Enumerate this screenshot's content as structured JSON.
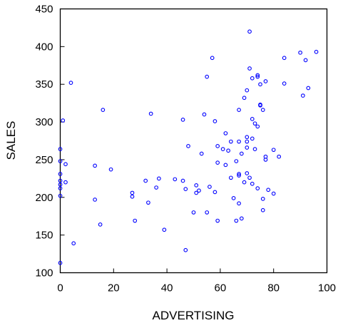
{
  "chart_data": {
    "type": "scatter",
    "title": "",
    "xlabel": "ADVERTISING",
    "ylabel": "SALES",
    "xlim": [
      0,
      100
    ],
    "ylim": [
      100,
      450
    ],
    "xticks": [
      0,
      20,
      40,
      60,
      80,
      100
    ],
    "yticks": [
      100,
      150,
      200,
      250,
      300,
      350,
      400,
      450
    ],
    "grid": false,
    "legend": "none",
    "marker_color": "#0000ff",
    "series": [
      {
        "points": [
          [
            0,
            113
          ],
          [
            0,
            202
          ],
          [
            0,
            212
          ],
          [
            0,
            217
          ],
          [
            0,
            222
          ],
          [
            0,
            231
          ],
          [
            0,
            248
          ],
          [
            0,
            264
          ],
          [
            1,
            302
          ],
          [
            2,
            220
          ],
          [
            2,
            244
          ],
          [
            4,
            352
          ],
          [
            5,
            139
          ],
          [
            13,
            197
          ],
          [
            13,
            242
          ],
          [
            15,
            164
          ],
          [
            16,
            316
          ],
          [
            19,
            237
          ],
          [
            27,
            201
          ],
          [
            27,
            206
          ],
          [
            28,
            169
          ],
          [
            32,
            222
          ],
          [
            33,
            193
          ],
          [
            34,
            311
          ],
          [
            36,
            213
          ],
          [
            37,
            225
          ],
          [
            39,
            157
          ],
          [
            43,
            224
          ],
          [
            46,
            222
          ],
          [
            46,
            303
          ],
          [
            47,
            130
          ],
          [
            47,
            211
          ],
          [
            48,
            268
          ],
          [
            50,
            180
          ],
          [
            51,
            206
          ],
          [
            51,
            216
          ],
          [
            52,
            209
          ],
          [
            53,
            258
          ],
          [
            54,
            310
          ],
          [
            55,
            180
          ],
          [
            55,
            360
          ],
          [
            56,
            214
          ],
          [
            57,
            385
          ],
          [
            58,
            207
          ],
          [
            58,
            301
          ],
          [
            59,
            169
          ],
          [
            59,
            246
          ],
          [
            59,
            268
          ],
          [
            61,
            264
          ],
          [
            62,
            243
          ],
          [
            62,
            285
          ],
          [
            63,
            262
          ],
          [
            64,
            274
          ],
          [
            64,
            226
          ],
          [
            65,
            199
          ],
          [
            66,
            169
          ],
          [
            66,
            248
          ],
          [
            67,
            231
          ],
          [
            67,
            229
          ],
          [
            67,
            274
          ],
          [
            67,
            316
          ],
          [
            67,
            192
          ],
          [
            68,
            172
          ],
          [
            68,
            258
          ],
          [
            69,
            220
          ],
          [
            69,
            332
          ],
          [
            70,
            280
          ],
          [
            70,
            274
          ],
          [
            70,
            342
          ],
          [
            70,
            266
          ],
          [
            70,
            232
          ],
          [
            71,
            420
          ],
          [
            71,
            371
          ],
          [
            71,
            226
          ],
          [
            72,
            358
          ],
          [
            72,
            304
          ],
          [
            72,
            278
          ],
          [
            72,
            218
          ],
          [
            73,
            264
          ],
          [
            73,
            298
          ],
          [
            74,
            294
          ],
          [
            74,
            360
          ],
          [
            74,
            362
          ],
          [
            74,
            212
          ],
          [
            75,
            322
          ],
          [
            75,
            323
          ],
          [
            75,
            350
          ],
          [
            76,
            198
          ],
          [
            76,
            183
          ],
          [
            76,
            316
          ],
          [
            77,
            250
          ],
          [
            77,
            254
          ],
          [
            77,
            354
          ],
          [
            78,
            210
          ],
          [
            80,
            205
          ],
          [
            80,
            263
          ],
          [
            82,
            254
          ],
          [
            84,
            385
          ],
          [
            84,
            351
          ],
          [
            90,
            392
          ],
          [
            91,
            335
          ],
          [
            92,
            382
          ],
          [
            93,
            345
          ],
          [
            96,
            393
          ]
        ]
      }
    ]
  }
}
